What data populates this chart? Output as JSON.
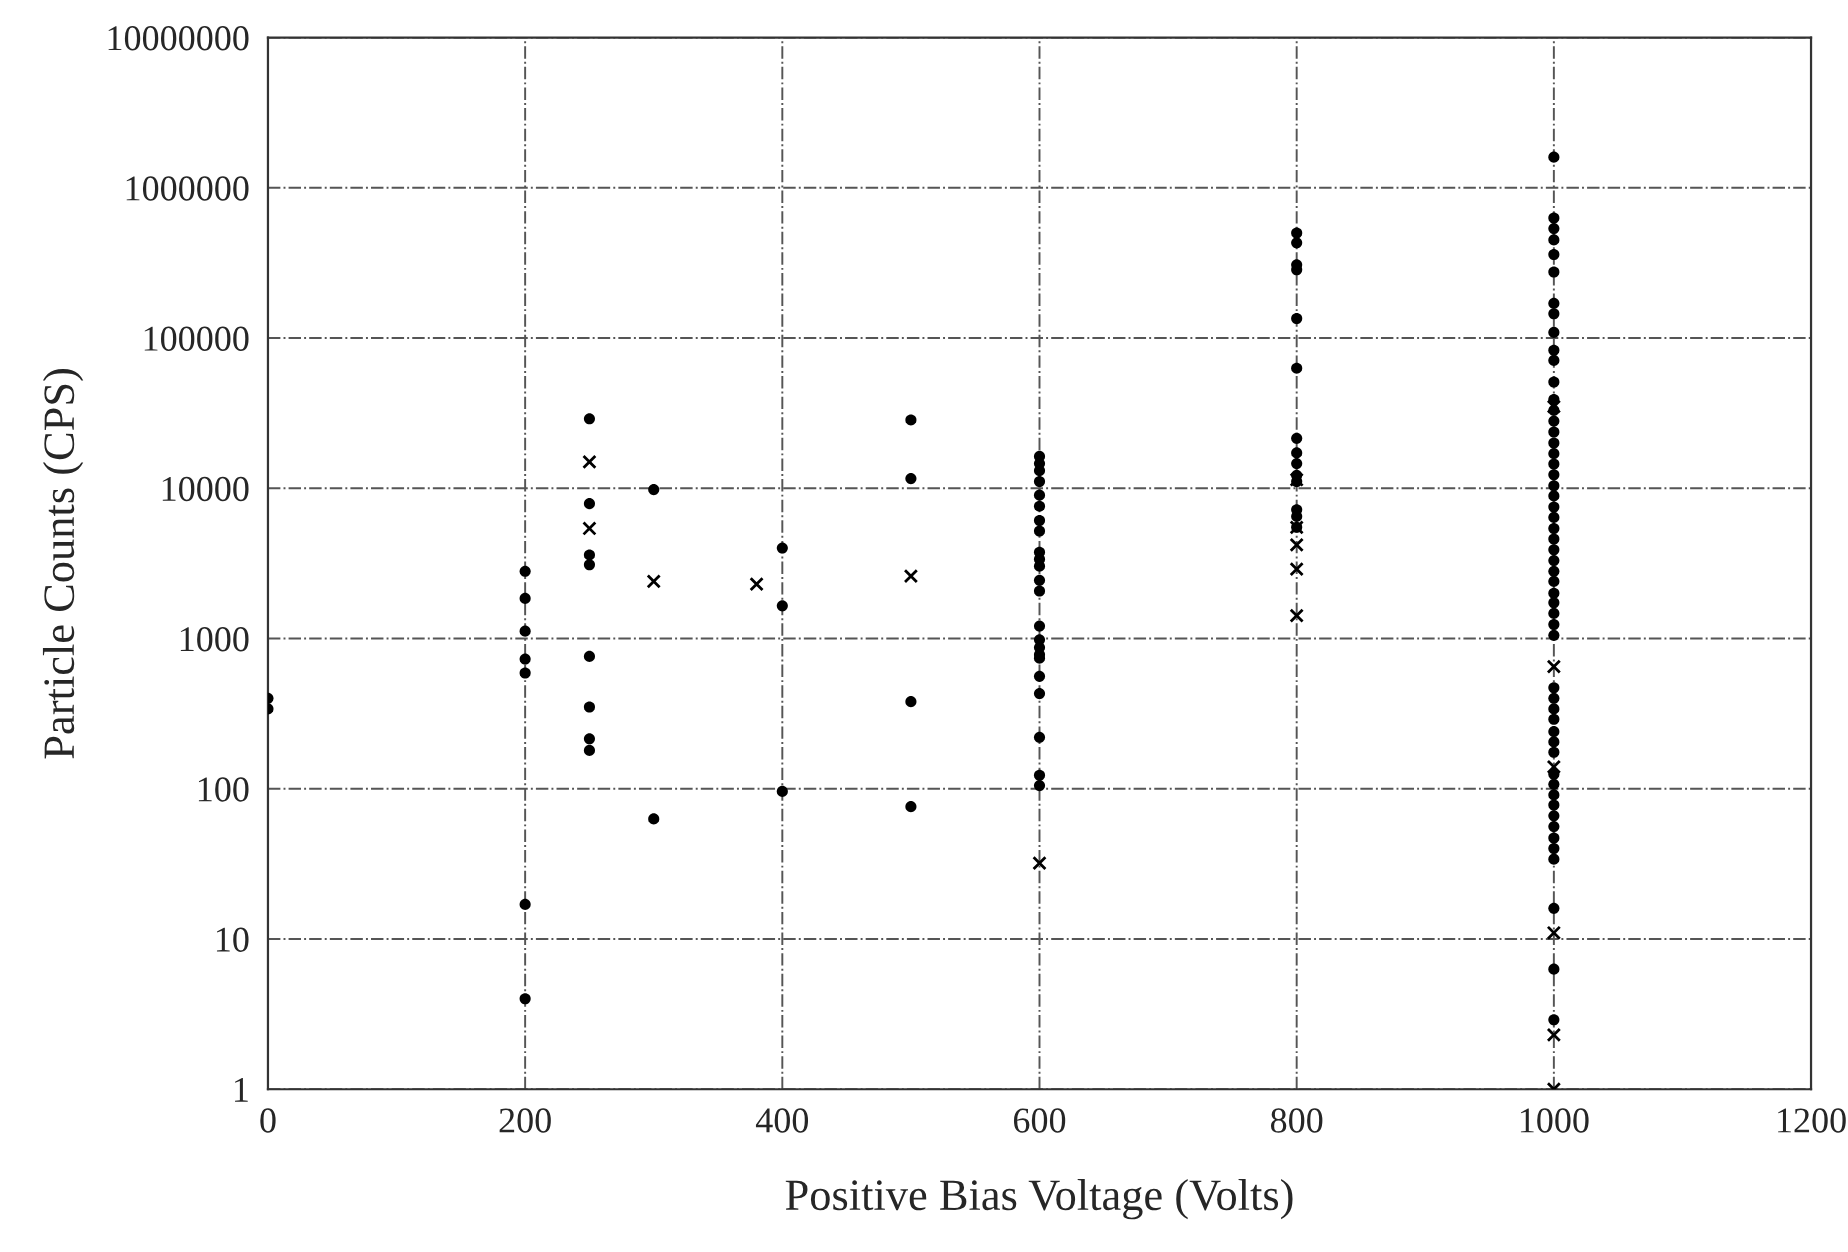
{
  "chart_data": {
    "type": "scatter",
    "xlabel": "Positive Bias Voltage (Volts)",
    "ylabel": "Particle Counts (CPS)",
    "log": "y",
    "grid": true,
    "xlim": [
      0,
      1200
    ],
    "xticks": [
      0,
      200,
      400,
      600,
      800,
      1000,
      1200
    ],
    "ylim": [
      1,
      10000000
    ],
    "yticks": [
      1,
      10,
      100,
      1000,
      10000,
      100000,
      1000000,
      10000000
    ],
    "series": [
      {
        "color": "#000000",
        "marker": "circle",
        "x": [
          0,
          0,
          200,
          200,
          200,
          200,
          200,
          200,
          200,
          250,
          250,
          250,
          250,
          250,
          250,
          250,
          250,
          300,
          300,
          400,
          400,
          400,
          500,
          500,
          500,
          500,
          600,
          600,
          600,
          600,
          600,
          600,
          600,
          600,
          600,
          600,
          600,
          600,
          600,
          600,
          600,
          600,
          600,
          600,
          600,
          600,
          600,
          600,
          600,
          800,
          800,
          800,
          800,
          800,
          800,
          800,
          800,
          800,
          800,
          800,
          800,
          800,
          800,
          1000,
          1000,
          1000,
          1000,
          1000,
          1000,
          1000,
          1000,
          1000,
          1000,
          1000,
          1000,
          1000,
          1000,
          1000,
          1000,
          1000,
          1000,
          1000,
          1000,
          1000,
          1000,
          1000,
          1000,
          1000,
          1000,
          1000,
          1000,
          1000,
          1000,
          1000,
          1000,
          1000,
          1000,
          1000,
          1000,
          1000,
          1000,
          1000,
          1000,
          1000,
          1000,
          1000,
          1000,
          1000,
          1000,
          1000,
          1000,
          1000,
          1000,
          1000,
          1000,
          1000,
          1000
        ],
        "values": [
          400,
          340,
          2800,
          1850,
          1120,
          730,
          590,
          17,
          4,
          29000,
          7900,
          3600,
          760,
          350,
          215,
          180,
          3100,
          9800,
          63,
          4000,
          1650,
          96,
          28500,
          11600,
          380,
          76,
          16300,
          14600,
          13100,
          11100,
          9000,
          7600,
          6100,
          5200,
          3750,
          3370,
          3030,
          2440,
          2070,
          1210,
          980,
          870,
          780,
          740,
          560,
          430,
          220,
          123,
          105,
          500000,
          430000,
          307000,
          285000,
          135000,
          63000,
          21500,
          17200,
          14600,
          12200,
          11100,
          7200,
          6500,
          5500,
          1600000,
          630000,
          535000,
          450000,
          360000,
          275000,
          170000,
          145000,
          109000,
          83000,
          71000,
          51000,
          39000,
          33000,
          28000,
          23700,
          20000,
          17000,
          14500,
          12300,
          10400,
          8900,
          7500,
          6400,
          5400,
          4600,
          3900,
          3300,
          2800,
          2400,
          2000,
          1730,
          1470,
          1240,
          1050,
          470,
          400,
          340,
          290,
          240,
          205,
          175,
          125,
          107,
          91,
          78,
          66,
          56,
          47,
          40,
          34,
          16,
          6.3,
          2.9
        ]
      },
      {
        "color": "#000000",
        "marker": "cross",
        "x": [
          250,
          250,
          300,
          380,
          500,
          600,
          800,
          800,
          800,
          800,
          800,
          1000,
          1000,
          1000,
          1000,
          1000,
          1000
        ],
        "values": [
          15000,
          5400,
          2400,
          2300,
          2600,
          32,
          11400,
          5500,
          4200,
          2900,
          1420,
          35000,
          650,
          140,
          11,
          2.3,
          1
        ]
      }
    ]
  }
}
